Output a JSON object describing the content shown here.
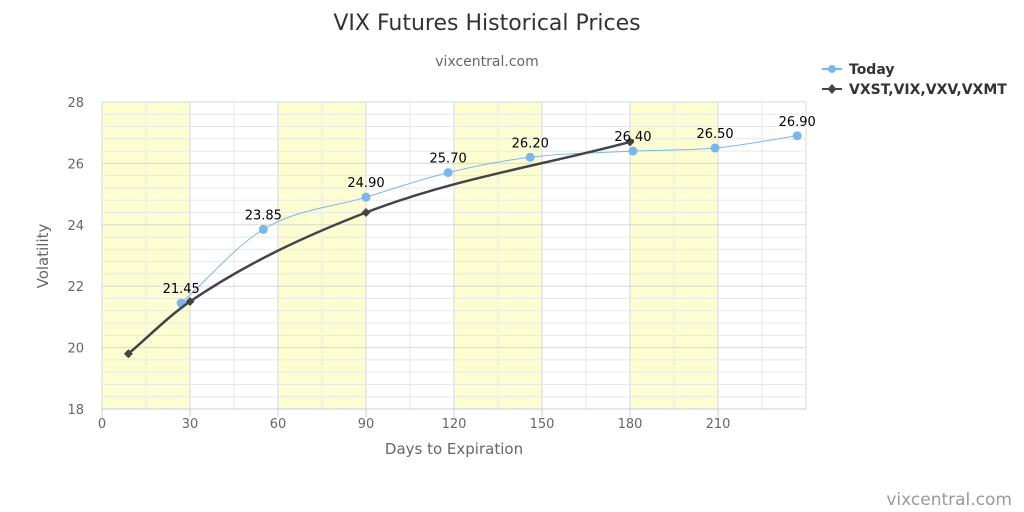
{
  "chart_data": {
    "type": "line",
    "title": "VIX Futures Historical Prices",
    "subtitle": "vixcentral.com",
    "xlabel": "Days to Expiration",
    "ylabel": "Volatility",
    "credit": "vixcentral.com",
    "xlim": [
      0,
      240
    ],
    "ylim": [
      18,
      28
    ],
    "x_ticks": [
      "0",
      "30",
      "60",
      "90",
      "120",
      "150",
      "180",
      "210"
    ],
    "y_ticks": [
      "18",
      "20",
      "22",
      "24",
      "26",
      "28"
    ],
    "shaded_bands": [
      [
        0,
        30
      ],
      [
        60,
        90
      ],
      [
        120,
        150
      ],
      [
        180,
        210
      ]
    ],
    "grid": true,
    "legend_position": "top-right",
    "series": [
      {
        "name": "Today",
        "color": "#7cb5ec",
        "marker": "circle",
        "x": [
          27,
          55,
          90,
          118,
          146,
          181,
          209,
          237
        ],
        "y": [
          21.45,
          23.85,
          24.9,
          25.7,
          26.2,
          26.4,
          26.5,
          26.9
        ],
        "labels": [
          "21.45",
          "23.85",
          "24.90",
          "25.70",
          "26.20",
          "26.40",
          "26.50",
          "26.90"
        ]
      },
      {
        "name": "VXST,VIX,VXV,VXMT",
        "color": "#434348",
        "marker": "diamond",
        "x": [
          9,
          30,
          90,
          180
        ],
        "y": [
          19.8,
          21.5,
          24.4,
          26.7
        ]
      }
    ]
  }
}
